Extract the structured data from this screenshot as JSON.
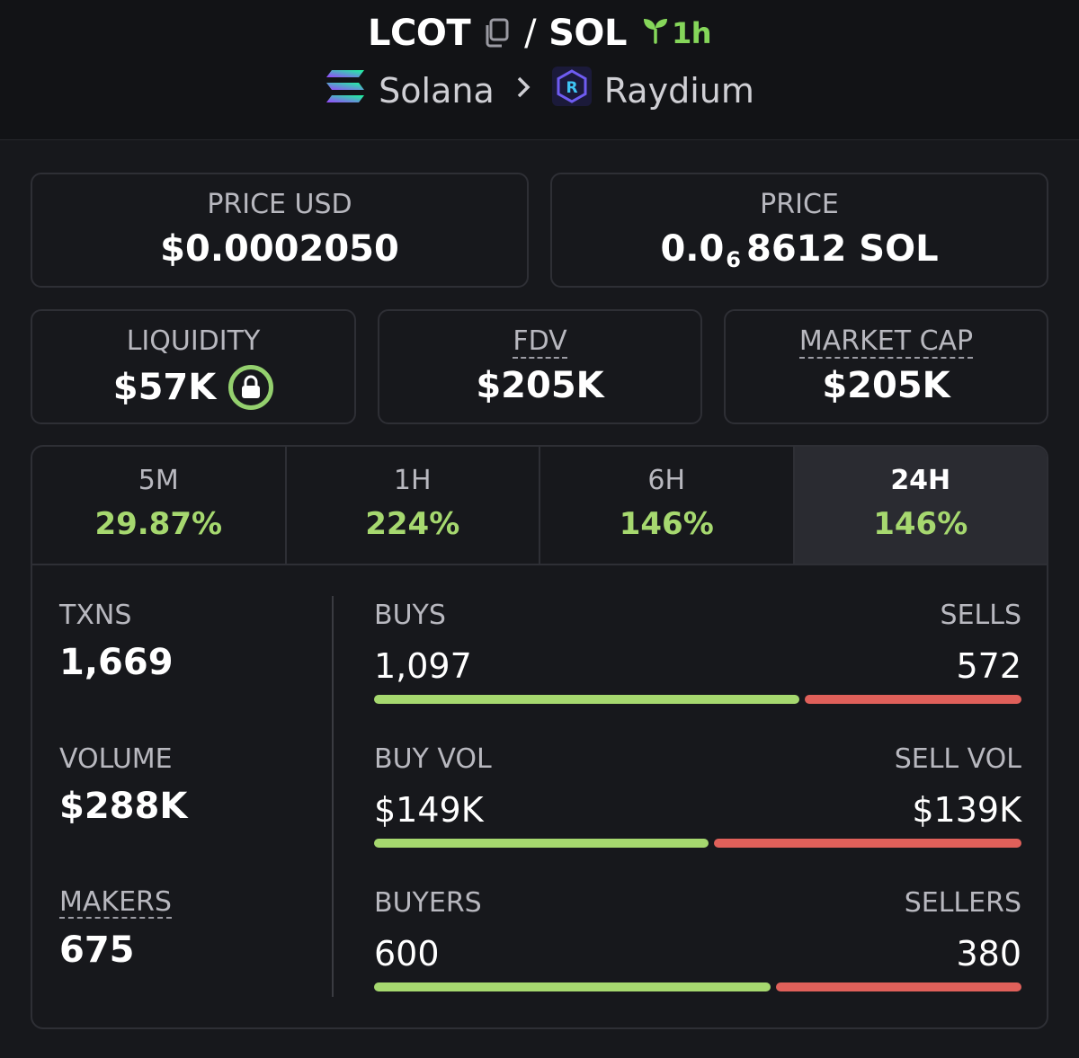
{
  "header": {
    "base": "LCOT",
    "sep": "/",
    "quote": "SOL",
    "age": "1h",
    "chain": "Solana",
    "dex": "Raydium",
    "icons": {
      "copy": "copy-icon",
      "age": "seedling-icon",
      "chain": "solana-logo",
      "dex": "raydium-logo",
      "chevron": "chevron-right-icon"
    }
  },
  "price_usd": {
    "label": "PRICE USD",
    "value": "$0.0002050"
  },
  "price": {
    "label": "PRICE",
    "prefix": "0.0",
    "subscript": "6",
    "digits": "8612 SOL"
  },
  "liquidity": {
    "label": "LIQUIDITY",
    "value": "$57K"
  },
  "fdv": {
    "label": "FDV",
    "value": "$205K"
  },
  "market_cap": {
    "label": "MARKET CAP",
    "value": "$205K"
  },
  "tabs": [
    {
      "label": "5M",
      "value": "29.87%"
    },
    {
      "label": "1H",
      "value": "224%"
    },
    {
      "label": "6H",
      "value": "146%"
    },
    {
      "label": "24H",
      "value": "146%"
    }
  ],
  "stats": {
    "txns": {
      "label": "TXNS",
      "value": "1,669"
    },
    "volume": {
      "label": "VOLUME",
      "value": "$288K"
    },
    "makers": {
      "label": "MAKERS",
      "value": "675"
    },
    "buys": {
      "left_label": "BUYS",
      "left_value": "1,097",
      "right_label": "SELLS",
      "right_value": "572",
      "buy_fraction": 0.657
    },
    "vol": {
      "left_label": "BUY VOL",
      "left_value": "$149K",
      "right_label": "SELL VOL",
      "right_value": "$139K",
      "buy_fraction": 0.517
    },
    "buyers": {
      "left_label": "BUYERS",
      "left_value": "600",
      "right_label": "SELLERS",
      "right_value": "380",
      "buy_fraction": 0.612
    }
  },
  "colors": {
    "positive": "#a6d86f",
    "negative": "#e0605a",
    "background": "#17181c"
  }
}
